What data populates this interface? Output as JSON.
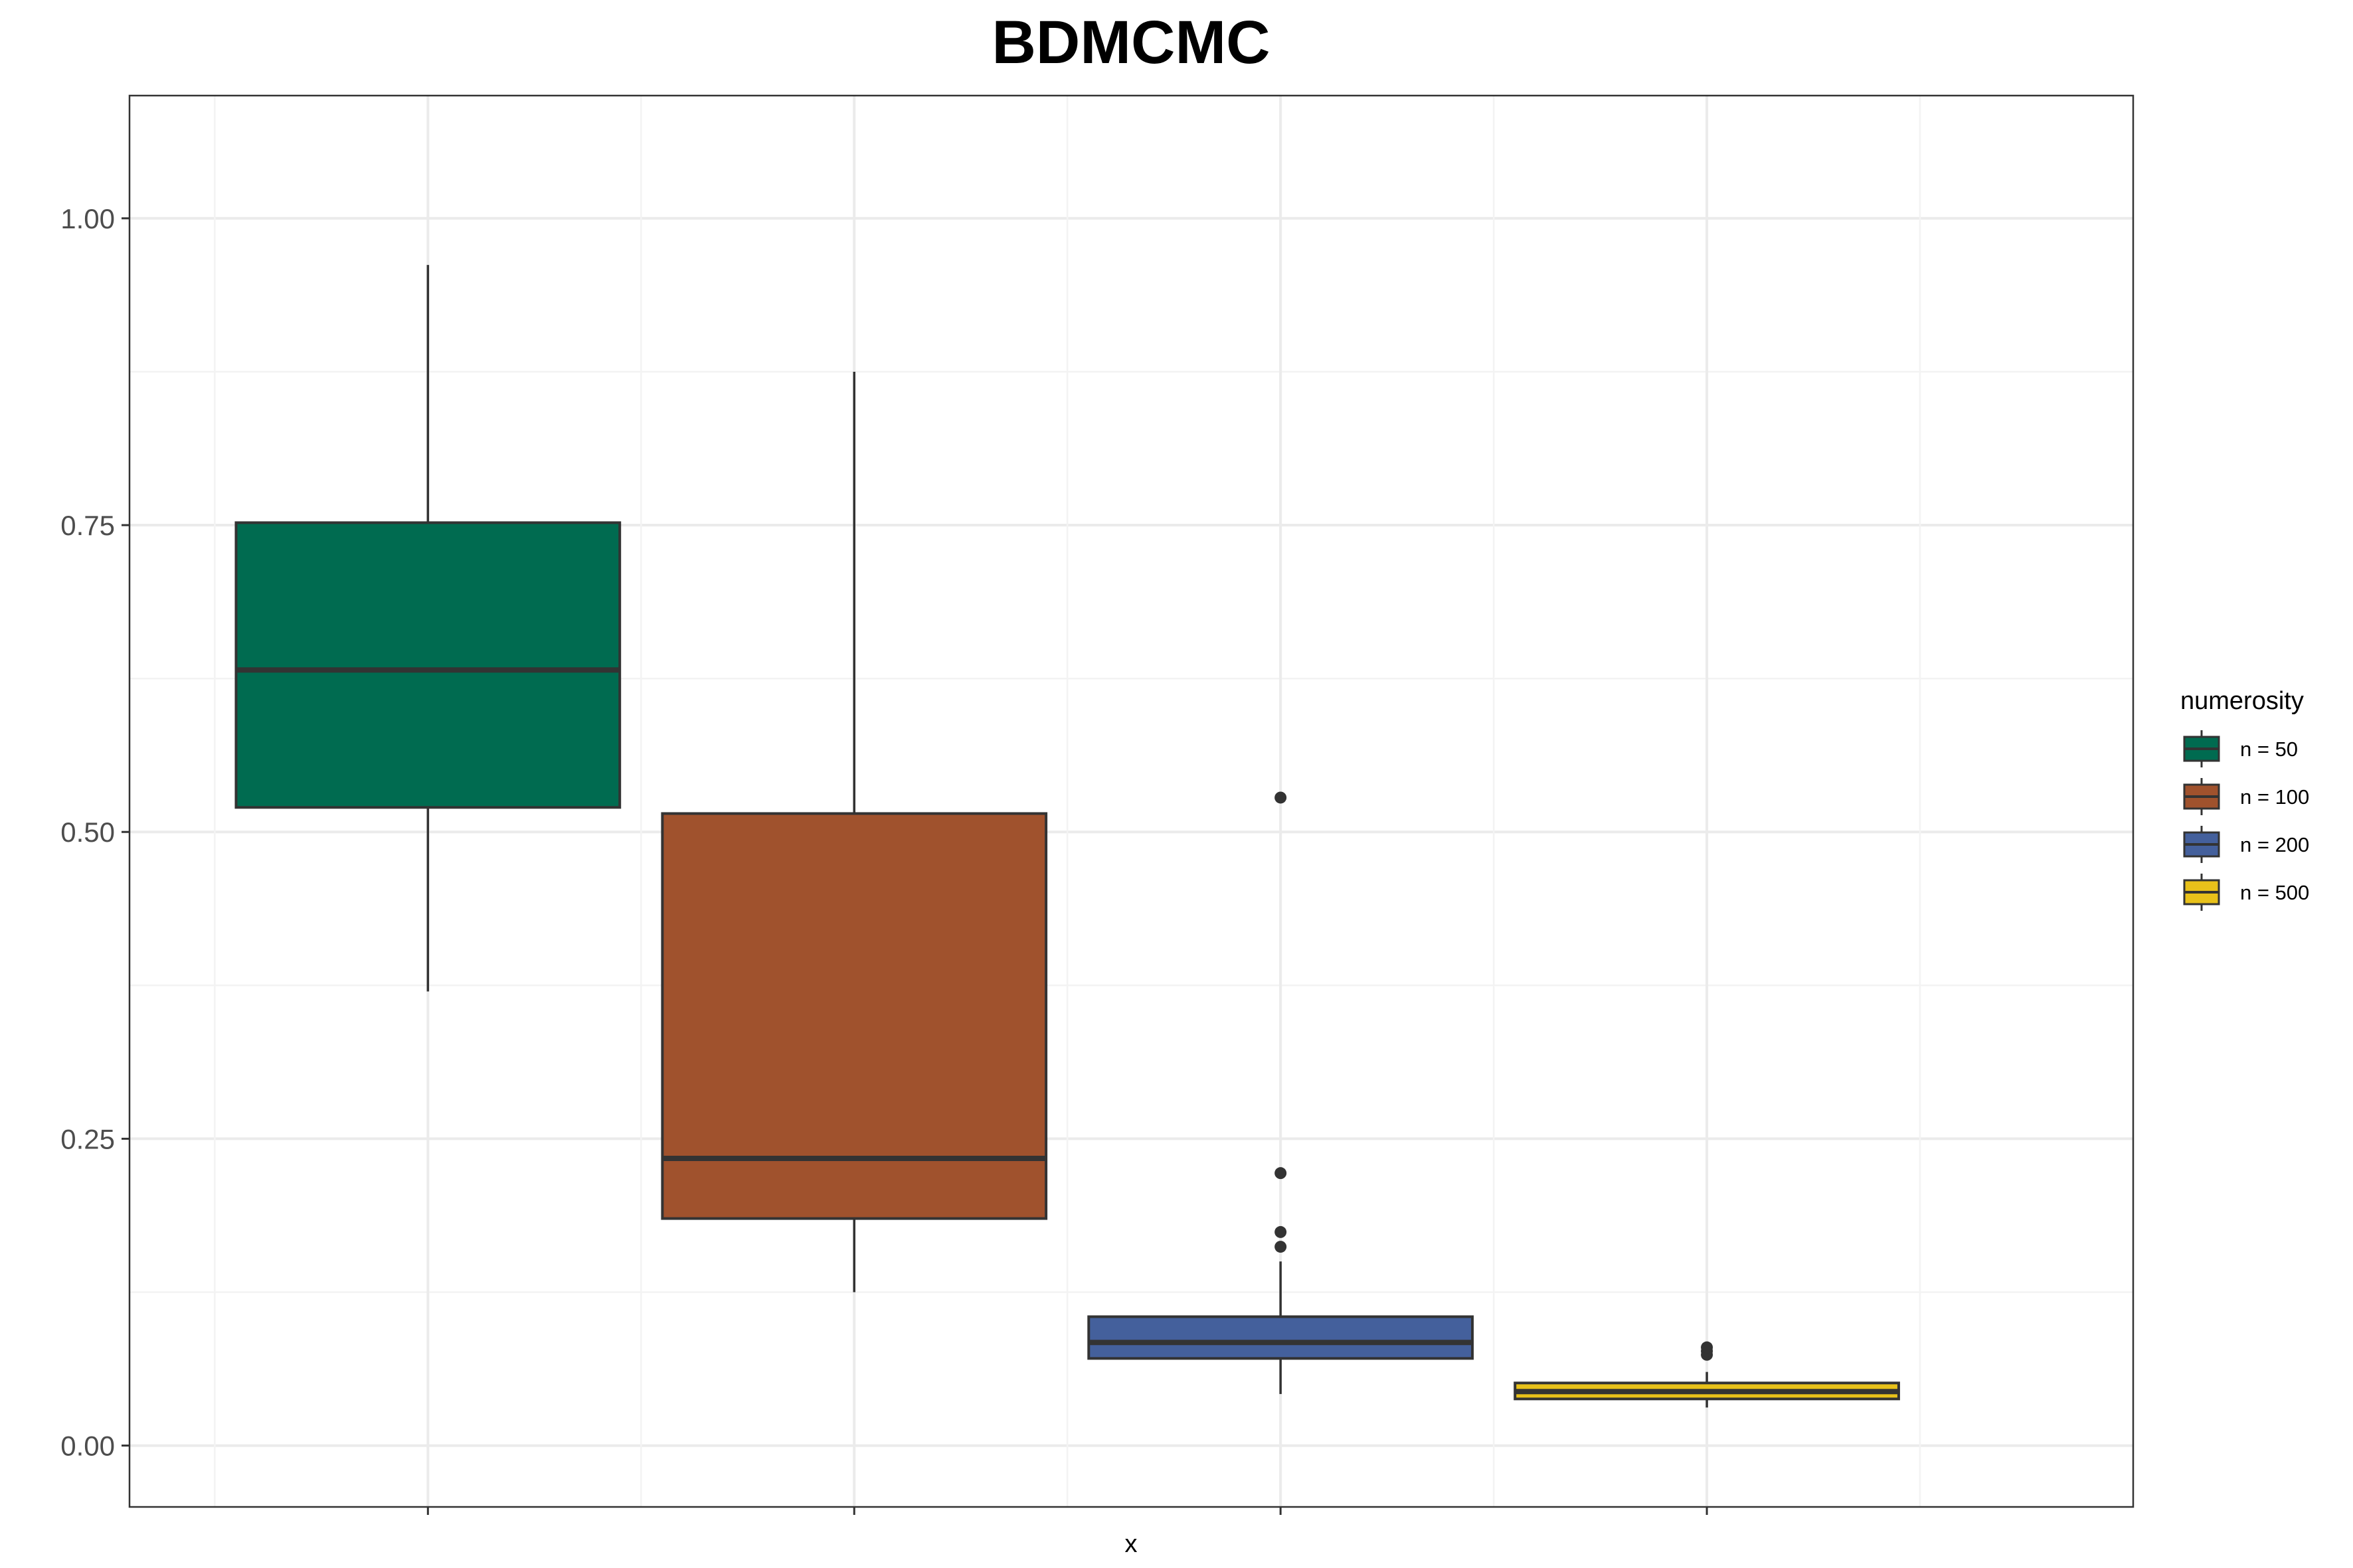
{
  "chart_data": {
    "type": "box",
    "title": "BDMCMC",
    "xlabel": "x",
    "ylabel": "",
    "ylim": [
      -0.05,
      1.1
    ],
    "yticks": [
      0.0,
      0.25,
      0.5,
      0.75,
      1.0
    ],
    "ytick_labels": [
      "0.00",
      "0.25",
      "0.50",
      "0.75",
      "1.00"
    ],
    "grid": true,
    "legend": {
      "title": "numerosity",
      "position": "right",
      "entries": [
        "n = 50",
        "n = 100",
        "n = 200",
        "n = 500"
      ]
    },
    "series": [
      {
        "name": "n = 50",
        "color": "#006b50",
        "whisker_low": 0.37,
        "q1": 0.52,
        "median": 0.632,
        "q3": 0.752,
        "whisker_high": 0.962,
        "outliers": []
      },
      {
        "name": "n = 100",
        "color": "#a0522d",
        "whisker_low": 0.125,
        "q1": 0.185,
        "median": 0.234,
        "q3": 0.515,
        "whisker_high": 0.875,
        "outliers": []
      },
      {
        "name": "n = 200",
        "color": "#44609c",
        "whisker_low": 0.042,
        "q1": 0.071,
        "median": 0.084,
        "q3": 0.105,
        "whisker_high": 0.15,
        "outliers": [
          0.162,
          0.174,
          0.222,
          0.528
        ]
      },
      {
        "name": "n = 500",
        "color": "#e8c11a",
        "whisker_low": 0.031,
        "q1": 0.038,
        "median": 0.044,
        "q3": 0.051,
        "whisker_high": 0.06,
        "outliers": [
          0.074,
          0.077,
          0.08
        ]
      }
    ]
  }
}
